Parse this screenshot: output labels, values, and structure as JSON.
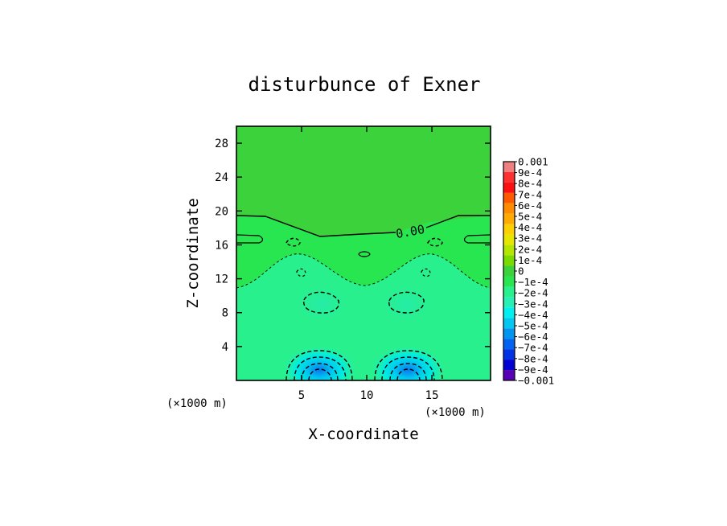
{
  "chart_data": {
    "type": "heatmap",
    "title": "disturbunce of Exner",
    "xlabel": "X-coordinate",
    "ylabel": "Z-coordinate",
    "x_unit": "(×1000 m)",
    "y_unit": "(×1000 m)",
    "xlim": [
      0,
      19.5
    ],
    "ylim": [
      0,
      30
    ],
    "x_ticks": [
      "5",
      "10",
      "15"
    ],
    "y_ticks": [
      "4",
      "8",
      "12",
      "16",
      "20",
      "24",
      "28"
    ],
    "colorbar": {
      "min": -0.001,
      "max": 0.001,
      "labels": [
        "0.001",
        "9e-4",
        "8e-4",
        "7e-4",
        "6e-4",
        "5e-4",
        "4e-4",
        "3e-4",
        "2e-4",
        "1e-4",
        "0",
        "−1e-4",
        "−2e-4",
        "−3e-4",
        "−4e-4",
        "−5e-4",
        "−6e-4",
        "−7e-4",
        "−8e-4",
        "−9e-4",
        "−0.001"
      ],
      "colors": [
        "#f08080",
        "#ff3030",
        "#ff1010",
        "#ff5a00",
        "#ff8c00",
        "#ffaa00",
        "#ffd000",
        "#e6e600",
        "#b4e600",
        "#78dc00",
        "#3cd23c",
        "#28e650",
        "#28f08c",
        "#28f0b4",
        "#00f0f0",
        "#00c8f0",
        "#0096f0",
        "#0064f0",
        "#0032e6",
        "#0000d2",
        "#5a00b4"
      ]
    },
    "contour_labels": [
      "0.00"
    ],
    "minima": [
      {
        "x": 6.5,
        "z": 1.2,
        "value": -0.0005
      },
      {
        "x": 13.2,
        "z": 1.2,
        "value": -0.0005
      }
    ]
  }
}
